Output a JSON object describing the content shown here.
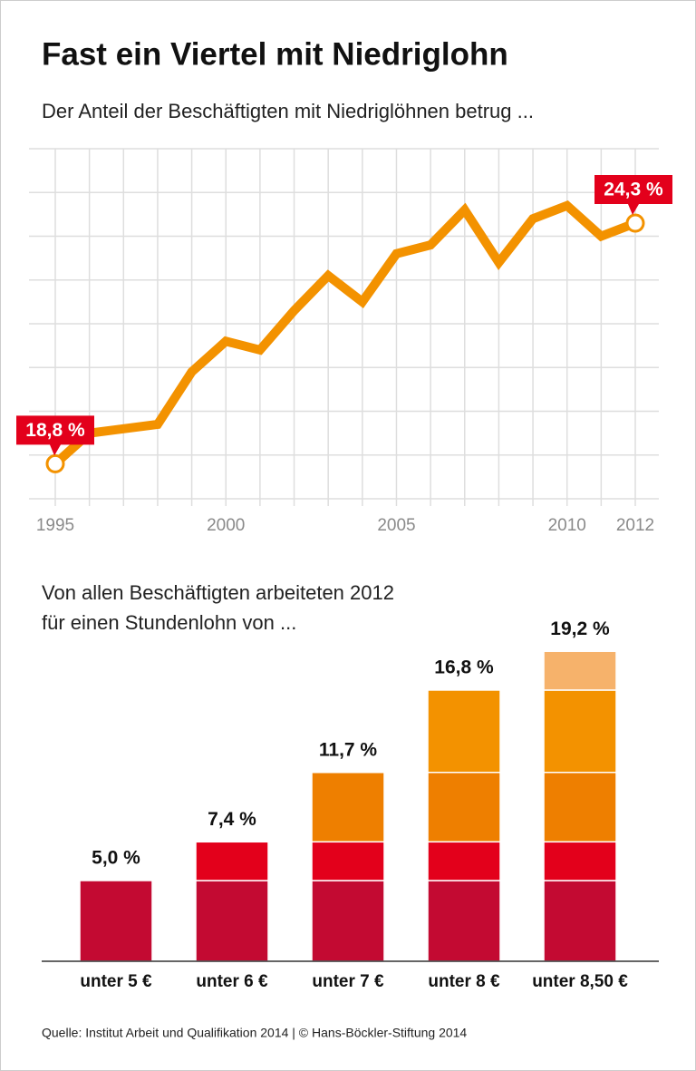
{
  "title": "Fast ein Viertel mit Niedriglohn",
  "chart_data": [
    {
      "type": "line",
      "title": "Der Anteil der Beschäftigten mit Niedriglöhnen betrug ...",
      "x": [
        1995,
        1996,
        1997,
        1998,
        1999,
        2000,
        2001,
        2002,
        2003,
        2004,
        2005,
        2006,
        2007,
        2008,
        2009,
        2010,
        2011,
        2012
      ],
      "values": [
        18.8,
        19.5,
        19.6,
        19.7,
        20.9,
        21.6,
        21.4,
        22.3,
        23.1,
        22.5,
        23.6,
        23.8,
        24.6,
        23.4,
        24.4,
        24.7,
        24.0,
        24.3
      ],
      "value_labels": [
        "18,8 %",
        null,
        null,
        null,
        null,
        null,
        null,
        null,
        null,
        null,
        null,
        null,
        null,
        null,
        null,
        null,
        null,
        "24,3 %"
      ],
      "color": "#f39200",
      "xlim": [
        1995,
        2012
      ],
      "xticks": [
        1995,
        2000,
        2005,
        2010,
        2012
      ],
      "ylim": [
        18,
        26
      ],
      "yticks": [
        18,
        19,
        20,
        21,
        22,
        23,
        24,
        25,
        26
      ],
      "grid": true
    },
    {
      "type": "stacked-bar",
      "title": [
        "Von allen Beschäftigten arbeiteten 2012",
        "für einen Stundenlohn von ..."
      ],
      "categories": [
        "unter 5 €",
        "unter 6 €",
        "unter 7 €",
        "unter 8 €",
        "unter 8,50 €"
      ],
      "series": [
        {
          "color": "#c30a32",
          "values": [
            5.0,
            5.0,
            5.0,
            5.0,
            5.0
          ]
        },
        {
          "color": "#e3001b",
          "values": [
            null,
            2.4,
            2.4,
            2.4,
            2.4
          ]
        },
        {
          "color": "#ee7f00",
          "values": [
            null,
            null,
            4.3,
            4.3,
            4.3
          ]
        },
        {
          "color": "#f39200",
          "values": [
            null,
            null,
            null,
            5.1,
            5.1
          ]
        },
        {
          "color": "#f6b26b",
          "values": [
            null,
            null,
            null,
            null,
            2.4
          ]
        }
      ],
      "total_labels": [
        "5,0 %",
        "7,4 %",
        "11,7 %",
        "16,8 %",
        "19,2 %"
      ]
    }
  ],
  "source": "Quelle: Institut Arbeit und Qualifikation 2014 | © Hans-Böckler-Stiftung 2014"
}
